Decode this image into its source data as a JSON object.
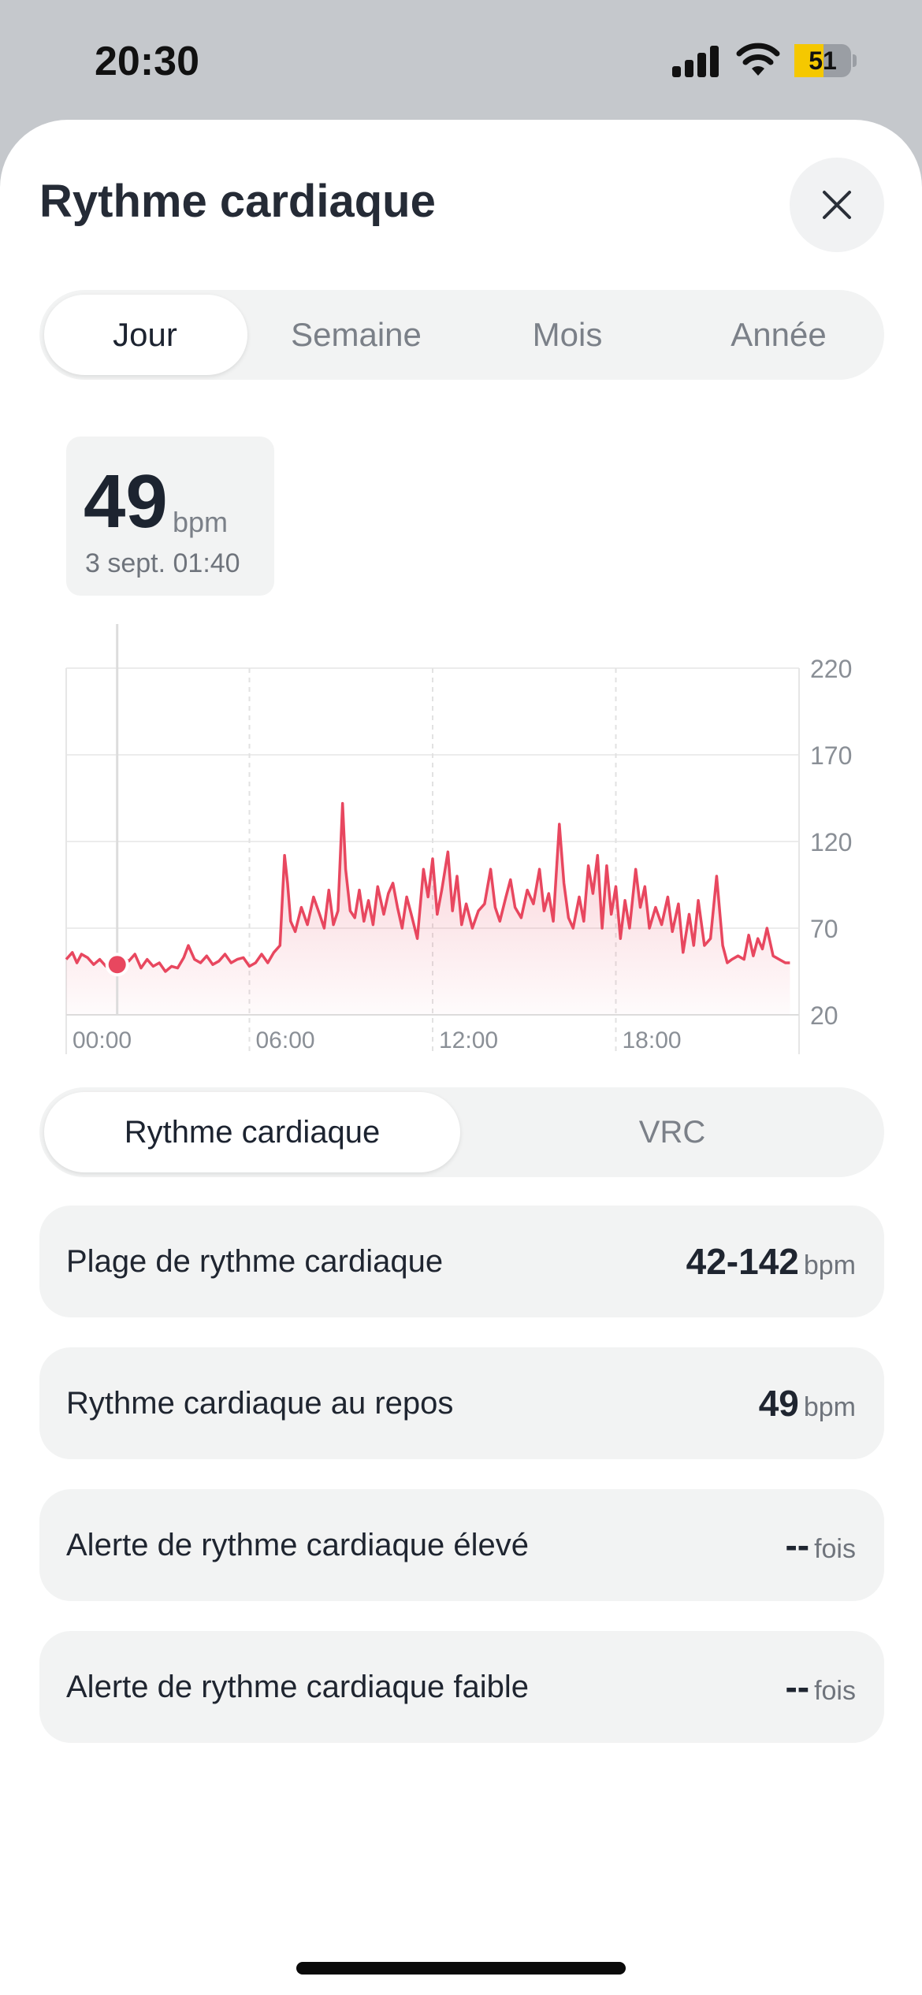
{
  "status_bar": {
    "time": "20:30",
    "battery": "51",
    "battery_level": 0.51
  },
  "header": {
    "title": "Rythme cardiaque"
  },
  "period_tabs": [
    {
      "label": "Jour",
      "active": true
    },
    {
      "label": "Semaine",
      "active": false
    },
    {
      "label": "Mois",
      "active": false
    },
    {
      "label": "Année",
      "active": false
    }
  ],
  "tooltip": {
    "value": "49",
    "unit": "bpm",
    "date": "3 sept. 01:40"
  },
  "chart_data": {
    "type": "area",
    "x_ticks": [
      "00:00",
      "06:00",
      "12:00",
      "18:00"
    ],
    "y_ticks": [
      220,
      170,
      120,
      70,
      20
    ],
    "ylim": [
      20,
      220
    ],
    "xlim_hours": [
      0,
      24
    ],
    "grid": true,
    "y_axis_position": "right",
    "line_color": "#e8475f",
    "selected_point": {
      "hour": 1.67,
      "value": 49
    },
    "series": [
      {
        "points": [
          [
            0.0,
            52
          ],
          [
            0.2,
            56
          ],
          [
            0.35,
            50
          ],
          [
            0.5,
            55
          ],
          [
            0.7,
            53
          ],
          [
            0.9,
            49
          ],
          [
            1.1,
            52
          ],
          [
            1.3,
            48
          ],
          [
            1.5,
            50
          ],
          [
            1.67,
            49
          ],
          [
            1.85,
            53
          ],
          [
            2.05,
            51
          ],
          [
            2.25,
            55
          ],
          [
            2.45,
            47
          ],
          [
            2.65,
            52
          ],
          [
            2.85,
            48
          ],
          [
            3.05,
            50
          ],
          [
            3.25,
            45
          ],
          [
            3.45,
            48
          ],
          [
            3.65,
            47
          ],
          [
            3.85,
            53
          ],
          [
            4.0,
            60
          ],
          [
            4.2,
            52
          ],
          [
            4.4,
            50
          ],
          [
            4.6,
            54
          ],
          [
            4.8,
            49
          ],
          [
            5.0,
            51
          ],
          [
            5.2,
            55
          ],
          [
            5.4,
            50
          ],
          [
            5.6,
            52
          ],
          [
            5.8,
            53
          ],
          [
            6.0,
            48
          ],
          [
            6.2,
            50
          ],
          [
            6.4,
            55
          ],
          [
            6.6,
            50
          ],
          [
            6.8,
            56
          ],
          [
            7.0,
            60
          ],
          [
            7.15,
            112
          ],
          [
            7.25,
            96
          ],
          [
            7.35,
            74
          ],
          [
            7.5,
            68
          ],
          [
            7.7,
            82
          ],
          [
            7.9,
            72
          ],
          [
            8.1,
            88
          ],
          [
            8.3,
            78
          ],
          [
            8.45,
            70
          ],
          [
            8.6,
            92
          ],
          [
            8.75,
            72
          ],
          [
            8.9,
            80
          ],
          [
            9.05,
            142
          ],
          [
            9.15,
            104
          ],
          [
            9.3,
            80
          ],
          [
            9.45,
            76
          ],
          [
            9.6,
            92
          ],
          [
            9.75,
            74
          ],
          [
            9.9,
            86
          ],
          [
            10.05,
            72
          ],
          [
            10.2,
            94
          ],
          [
            10.4,
            78
          ],
          [
            10.55,
            90
          ],
          [
            10.7,
            96
          ],
          [
            10.85,
            82
          ],
          [
            11.0,
            70
          ],
          [
            11.15,
            88
          ],
          [
            11.3,
            78
          ],
          [
            11.5,
            64
          ],
          [
            11.7,
            104
          ],
          [
            11.85,
            88
          ],
          [
            12.0,
            110
          ],
          [
            12.15,
            78
          ],
          [
            12.3,
            92
          ],
          [
            12.5,
            114
          ],
          [
            12.65,
            80
          ],
          [
            12.8,
            100
          ],
          [
            12.95,
            72
          ],
          [
            13.1,
            84
          ],
          [
            13.3,
            70
          ],
          [
            13.5,
            80
          ],
          [
            13.7,
            84
          ],
          [
            13.9,
            104
          ],
          [
            14.05,
            82
          ],
          [
            14.2,
            74
          ],
          [
            14.4,
            88
          ],
          [
            14.55,
            98
          ],
          [
            14.7,
            82
          ],
          [
            14.9,
            76
          ],
          [
            15.1,
            92
          ],
          [
            15.3,
            84
          ],
          [
            15.5,
            104
          ],
          [
            15.65,
            80
          ],
          [
            15.8,
            90
          ],
          [
            15.95,
            74
          ],
          [
            16.15,
            130
          ],
          [
            16.3,
            96
          ],
          [
            16.45,
            76
          ],
          [
            16.6,
            70
          ],
          [
            16.8,
            88
          ],
          [
            16.95,
            74
          ],
          [
            17.1,
            106
          ],
          [
            17.25,
            90
          ],
          [
            17.4,
            112
          ],
          [
            17.55,
            70
          ],
          [
            17.7,
            106
          ],
          [
            17.85,
            78
          ],
          [
            18.0,
            94
          ],
          [
            18.15,
            64
          ],
          [
            18.3,
            86
          ],
          [
            18.45,
            70
          ],
          [
            18.65,
            104
          ],
          [
            18.8,
            82
          ],
          [
            18.95,
            94
          ],
          [
            19.1,
            70
          ],
          [
            19.3,
            82
          ],
          [
            19.5,
            72
          ],
          [
            19.7,
            88
          ],
          [
            19.85,
            68
          ],
          [
            20.05,
            84
          ],
          [
            20.2,
            56
          ],
          [
            20.4,
            78
          ],
          [
            20.55,
            60
          ],
          [
            20.7,
            86
          ],
          [
            20.9,
            60
          ],
          [
            21.1,
            64
          ],
          [
            21.3,
            100
          ],
          [
            21.5,
            60
          ],
          [
            21.65,
            50
          ],
          [
            21.8,
            52
          ],
          [
            22.0,
            54
          ],
          [
            22.2,
            52
          ],
          [
            22.35,
            66
          ],
          [
            22.5,
            54
          ],
          [
            22.65,
            64
          ],
          [
            22.8,
            58
          ],
          [
            22.95,
            70
          ],
          [
            23.15,
            54
          ],
          [
            23.35,
            52
          ],
          [
            23.55,
            50
          ],
          [
            23.7,
            50
          ]
        ]
      }
    ]
  },
  "metric_tabs": [
    {
      "label": "Rythme cardiaque",
      "active": true
    },
    {
      "label": "VRC",
      "active": false
    }
  ],
  "stats": [
    {
      "label": "Plage de rythme cardiaque",
      "value": "42-142",
      "unit": "bpm"
    },
    {
      "label": "Rythme cardiaque au repos",
      "value": "49",
      "unit": "bpm"
    },
    {
      "label": "Alerte de rythme cardiaque élevé",
      "value": "--",
      "unit": "fois"
    },
    {
      "label": "Alerte de rythme cardiaque faible",
      "value": "--",
      "unit": "fois"
    }
  ]
}
